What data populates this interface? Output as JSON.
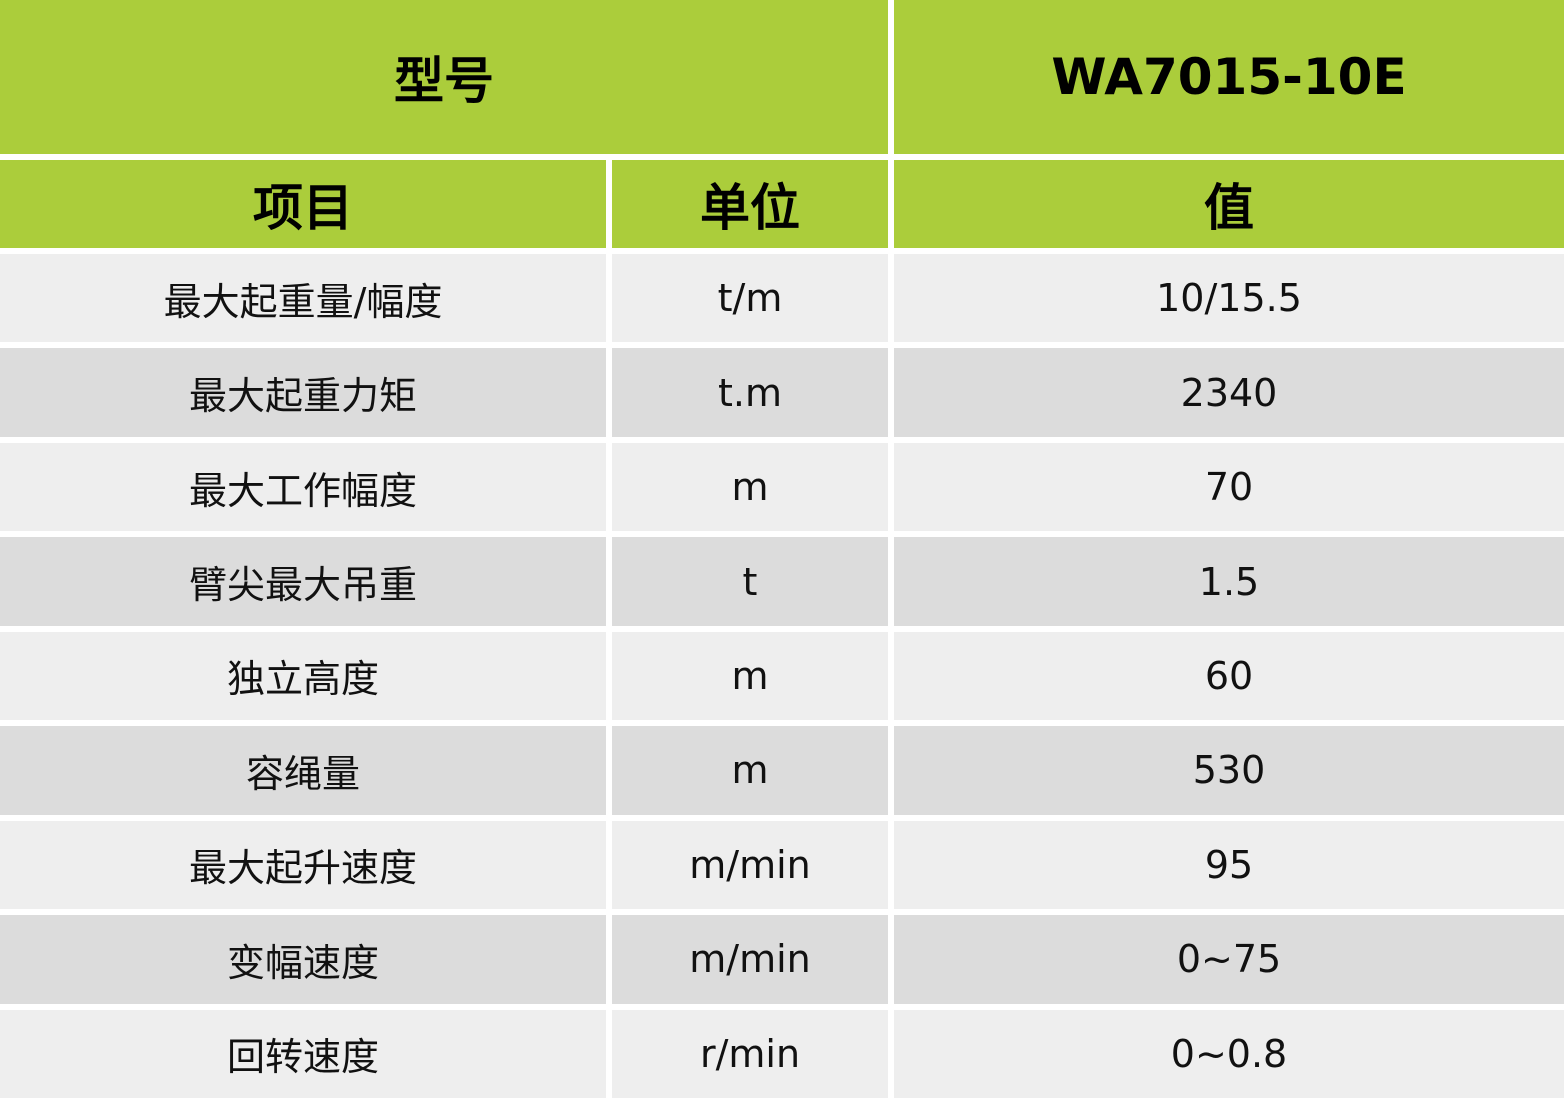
{
  "header": {
    "model_label": "型号",
    "model_value": "WA7015-10E"
  },
  "columns": {
    "item": "项目",
    "unit": "单位",
    "value": "值"
  },
  "rows": [
    {
      "item": "最大起重量/幅度",
      "unit": "t/m",
      "value": "10/15.5"
    },
    {
      "item": "最大起重力矩",
      "unit": "t.m",
      "value": "2340"
    },
    {
      "item": "最大工作幅度",
      "unit": "m",
      "value": "70"
    },
    {
      "item": "臂尖最大吊重",
      "unit": "t",
      "value": "1.5"
    },
    {
      "item": "独立高度",
      "unit": "m",
      "value": "60"
    },
    {
      "item": "容绳量",
      "unit": "m",
      "value": "530"
    },
    {
      "item": "最大起升速度",
      "unit": "m/min",
      "value": "95"
    },
    {
      "item": "变幅速度",
      "unit": "m/min",
      "value": "0~75"
    },
    {
      "item": "回转速度",
      "unit": "r/min",
      "value": "0~0.8"
    }
  ],
  "colors": {
    "header_green": "#abcd3b",
    "row_light": "#eeeeee",
    "row_dark": "#dcdcdc"
  }
}
